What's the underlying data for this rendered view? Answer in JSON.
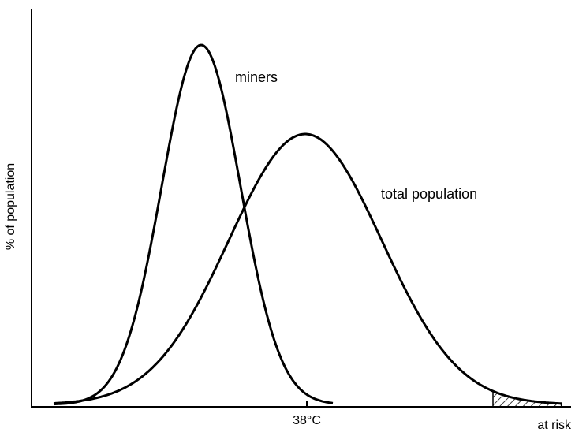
{
  "diagram": {
    "y_axis_label": "% of population",
    "x_tick_label": "38°C",
    "risk_label": "at risk",
    "curves": [
      {
        "label": "miners"
      },
      {
        "label": "total population"
      }
    ]
  }
}
